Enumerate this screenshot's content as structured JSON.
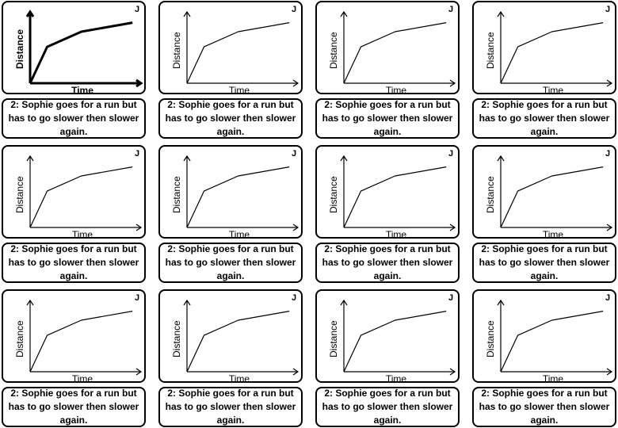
{
  "worksheet": {
    "caption": "2: Sophie goes for a run but has to go slower then slower again.",
    "xlabel": "Time",
    "ylabel": "Distance",
    "corner_mark": "J"
  },
  "chart_data": {
    "type": "line",
    "title": "",
    "xlabel": "Time",
    "ylabel": "Distance",
    "x": [
      0,
      1,
      3,
      6
    ],
    "y": [
      0,
      4.8,
      6.8,
      8
    ],
    "xlim": [
      0,
      6.5
    ],
    "ylim": [
      0,
      9
    ],
    "grid": false,
    "copies": 12
  }
}
